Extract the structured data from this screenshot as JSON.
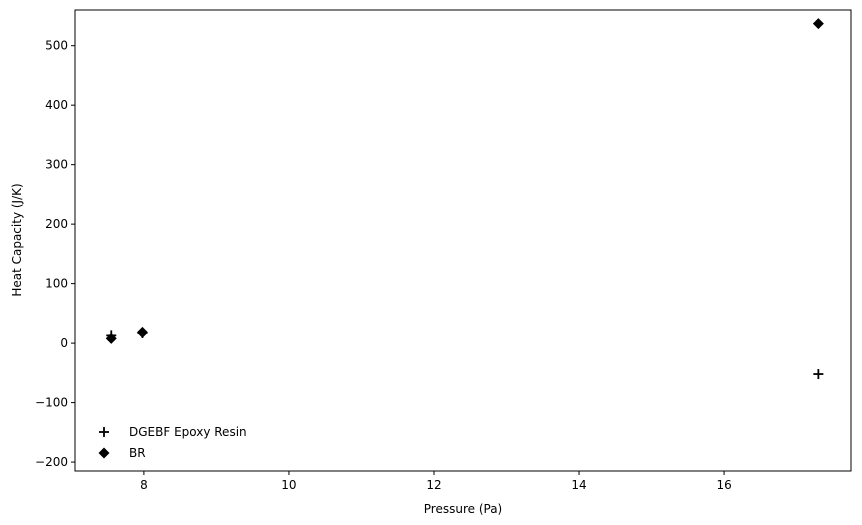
{
  "chart_data": {
    "type": "scatter",
    "title": "",
    "xlabel": "Pressure (Pa)",
    "ylabel": "Heat Capacity (J/K)",
    "xlim": [
      7.05,
      17.75
    ],
    "ylim": [
      -215,
      560
    ],
    "xticks": [
      8,
      10,
      12,
      14,
      16
    ],
    "yticks": [
      -200,
      -100,
      0,
      100,
      200,
      300,
      400,
      500
    ],
    "xtick_labels": [
      "8",
      "10",
      "12",
      "14",
      "16"
    ],
    "ytick_labels": [
      "−200",
      "−100",
      "0",
      "100",
      "200",
      "300",
      "400",
      "500"
    ],
    "grid": false,
    "legend_position": "lower-left",
    "series": [
      {
        "name": "DGEBF Epoxy Resin",
        "marker": "plus",
        "color": "#000000",
        "points": [
          [
            7.55,
            13
          ],
          [
            7.98,
            17
          ],
          [
            17.3,
            -52
          ]
        ]
      },
      {
        "name": "BR",
        "marker": "diamond",
        "color": "#000000",
        "points": [
          [
            7.55,
            8
          ],
          [
            7.98,
            18
          ],
          [
            17.3,
            537
          ]
        ]
      }
    ]
  }
}
